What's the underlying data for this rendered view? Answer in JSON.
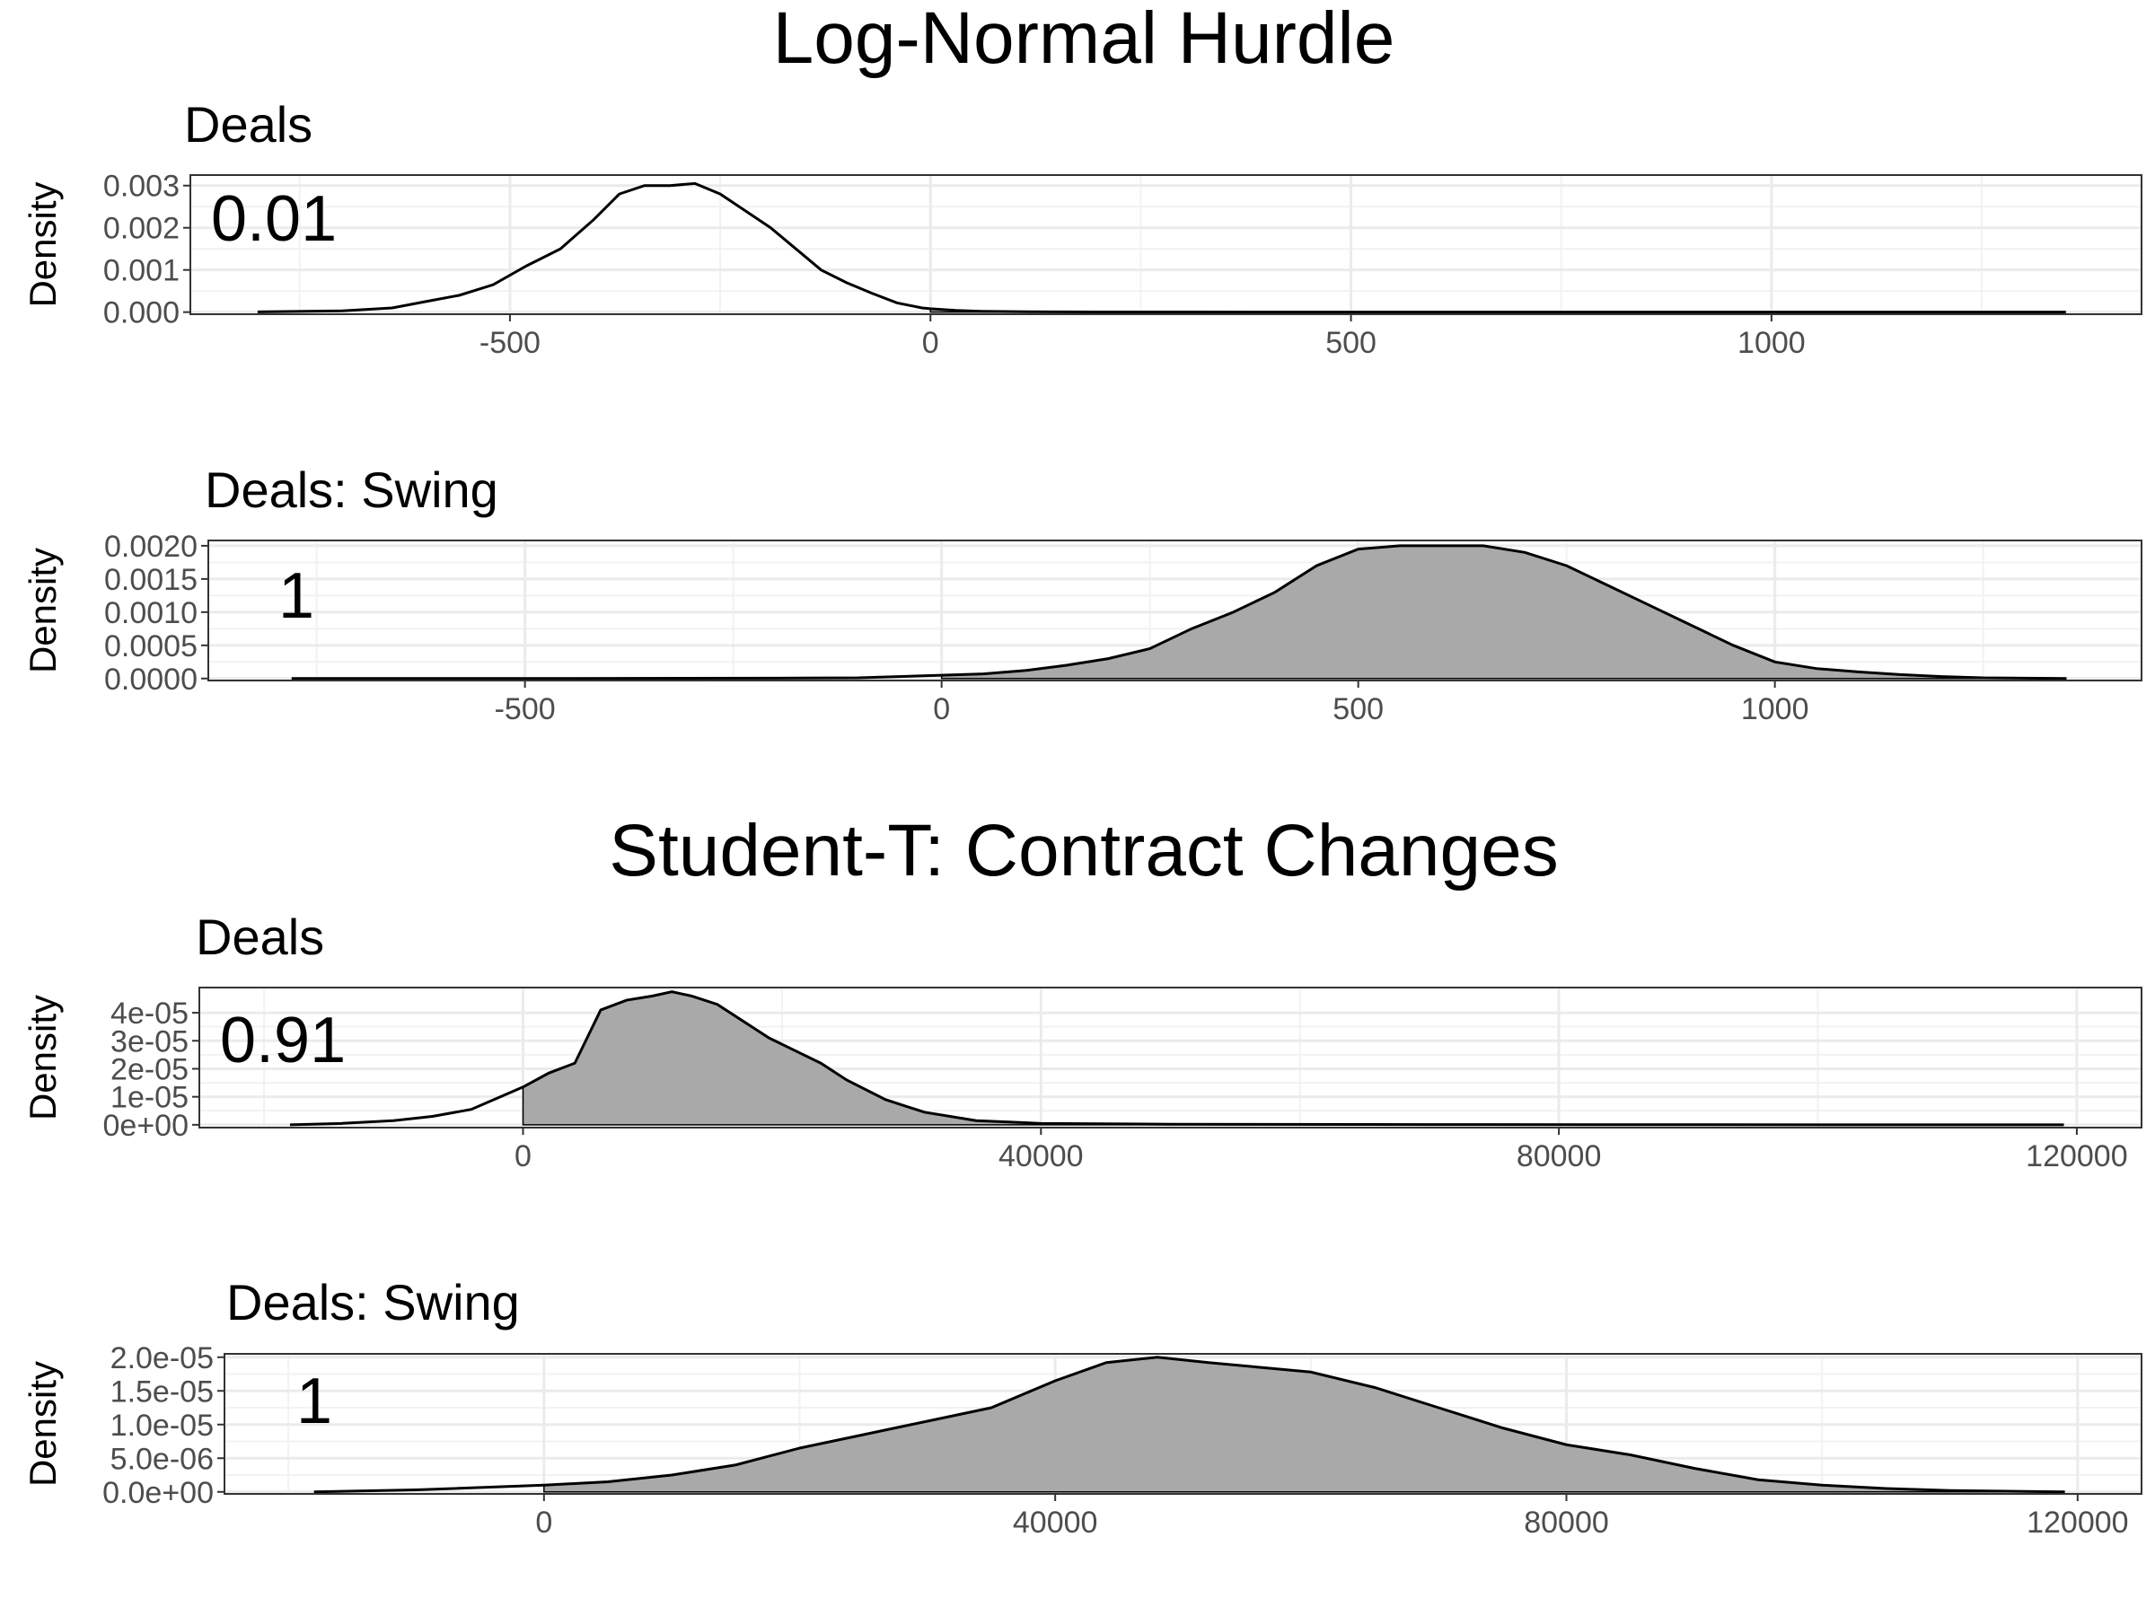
{
  "sections": [
    {
      "title": "Log-Normal Hurdle"
    },
    {
      "title": "Student-T: Contract Changes"
    }
  ],
  "chart_data": [
    {
      "type": "area",
      "section": "Log-Normal Hurdle",
      "title": "Deals",
      "ylabel": "Density",
      "xlabel": "",
      "annotation": "0.01",
      "xlim": [
        -880,
        1440
      ],
      "ylim": [
        -5e-05,
        0.00325
      ],
      "xticks": [
        -500,
        0,
        500,
        1000
      ],
      "xtick_labels": [
        "-500",
        "0",
        "500",
        "1000"
      ],
      "yticks": [
        0,
        0.001,
        0.002,
        0.003
      ],
      "ytick_labels": [
        "0.000",
        "0.001",
        "0.002",
        "0.003"
      ],
      "shade_from": 0,
      "fill_color": "#a9a9a9",
      "line_color": "#000000",
      "density": {
        "x": [
          -800,
          -700,
          -640,
          -600,
          -560,
          -520,
          -480,
          -440,
          -400,
          -370,
          -340,
          -310,
          -280,
          -250,
          -220,
          -190,
          -160,
          -130,
          -100,
          -70,
          -40,
          -10,
          0,
          30,
          60,
          100,
          150,
          200,
          300,
          500,
          800,
          1100,
          1350
        ],
        "y": [
          5e-06,
          3e-05,
          0.0001,
          0.00025,
          0.0004,
          0.00065,
          0.0011,
          0.0015,
          0.0022,
          0.0028,
          0.003,
          0.003,
          0.00305,
          0.0028,
          0.0024,
          0.002,
          0.0015,
          0.001,
          0.0007,
          0.00045,
          0.00022,
          0.0001,
          8e-05,
          4e-05,
          2e-05,
          1e-05,
          5e-06,
          3e-06,
          2e-06,
          1e-06,
          0,
          0,
          0
        ]
      }
    },
    {
      "type": "area",
      "section": "Log-Normal Hurdle",
      "title": "Deals: Swing",
      "ylabel": "Density",
      "xlabel": "",
      "annotation": "1",
      "xlim": [
        -880,
        1440
      ],
      "ylim": [
        -3e-05,
        0.00208
      ],
      "xticks": [
        -500,
        0,
        500,
        1000
      ],
      "xtick_labels": [
        "-500",
        "0",
        "500",
        "1000"
      ],
      "yticks": [
        0,
        0.0005,
        0.001,
        0.0015,
        0.002
      ],
      "ytick_labels": [
        "0.0000",
        "0.0005",
        "0.0010",
        "0.0015",
        "0.0020"
      ],
      "shade_from": 0,
      "fill_color": "#a9a9a9",
      "line_color": "#000000",
      "density": {
        "x": [
          -780,
          -500,
          -200,
          -100,
          0,
          50,
          100,
          150,
          200,
          250,
          300,
          350,
          400,
          450,
          500,
          550,
          600,
          650,
          700,
          750,
          800,
          850,
          900,
          950,
          1000,
          1050,
          1100,
          1150,
          1200,
          1250,
          1300,
          1350
        ],
        "y": [
          0,
          0,
          5e-06,
          1e-05,
          5e-05,
          7e-05,
          0.00012,
          0.0002,
          0.0003,
          0.00045,
          0.00075,
          0.001,
          0.0013,
          0.0017,
          0.00195,
          0.002,
          0.002,
          0.002,
          0.0019,
          0.0017,
          0.0014,
          0.0011,
          0.0008,
          0.0005,
          0.00025,
          0.00015,
          0.0001,
          6e-05,
          3e-05,
          1e-05,
          5e-06,
          0
        ]
      }
    },
    {
      "type": "area",
      "section": "Student-T: Contract Changes",
      "title": "Deals",
      "ylabel": "Density",
      "xlabel": "",
      "annotation": "0.91",
      "xlim": [
        -25000,
        125000
      ],
      "ylim": [
        -1e-06,
        4.9e-05
      ],
      "xticks": [
        0,
        40000,
        80000,
        120000
      ],
      "xtick_labels": [
        "0",
        "40000",
        "80000",
        "120000"
      ],
      "yticks": [
        0,
        1e-05,
        2e-05,
        3e-05,
        4e-05
      ],
      "ytick_labels": [
        "0e+00",
        "1e-05",
        "2e-05",
        "3e-05",
        "4e-05"
      ],
      "shade_from": 0,
      "fill_color": "#a9a9a9",
      "line_color": "#000000",
      "density": {
        "x": [
          -18000,
          -14000,
          -10000,
          -7000,
          -4000,
          -2000,
          0,
          2000,
          4000,
          6000,
          8000,
          10000,
          11500,
          13000,
          15000,
          17000,
          19000,
          21000,
          23000,
          25000,
          28000,
          31000,
          35000,
          40000,
          50000,
          70000,
          100000,
          119000
        ],
        "y": [
          0,
          5e-07,
          1.5e-06,
          3e-06,
          5.5e-06,
          9.5e-06,
          1.35e-05,
          1.85e-05,
          2.2e-05,
          4.1e-05,
          4.45e-05,
          4.6e-05,
          4.75e-05,
          4.6e-05,
          4.3e-05,
          3.7e-05,
          3.1e-05,
          2.65e-05,
          2.2e-05,
          1.6e-05,
          9e-06,
          4.5e-06,
          1.5e-06,
          5e-07,
          2e-07,
          1e-07,
          0,
          0
        ]
      }
    },
    {
      "type": "area",
      "section": "Student-T: Contract Changes",
      "title": "Deals: Swing",
      "ylabel": "Density",
      "xlabel": "",
      "annotation": "1",
      "xlim": [
        -25000,
        125000
      ],
      "ylim": [
        -3e-07,
        2.05e-05
      ],
      "xticks": [
        0,
        40000,
        80000,
        120000
      ],
      "xtick_labels": [
        "0",
        "40000",
        "80000",
        "120000"
      ],
      "yticks": [
        0,
        5e-06,
        1e-05,
        1.5e-05,
        2e-05
      ],
      "ytick_labels": [
        "0.0e+00",
        "5.0e-06",
        "1.0e-05",
        "1.5e-05",
        "2.0e-05"
      ],
      "shade_from": 0,
      "fill_color": "#a9a9a9",
      "line_color": "#000000",
      "density": {
        "x": [
          -18000,
          -10000,
          0,
          5000,
          10000,
          15000,
          20000,
          25000,
          30000,
          35000,
          40000,
          44000,
          48000,
          52000,
          56000,
          60000,
          65000,
          70000,
          75000,
          80000,
          85000,
          90000,
          95000,
          100000,
          105000,
          110000,
          119000
        ],
        "y": [
          0,
          3e-07,
          1e-06,
          1.5e-06,
          2.5e-06,
          4e-06,
          6.5e-06,
          8.5e-06,
          1.05e-05,
          1.25e-05,
          1.65e-05,
          1.92e-05,
          2e-05,
          1.92e-05,
          1.85e-05,
          1.78e-05,
          1.55e-05,
          1.25e-05,
          9.5e-06,
          7e-06,
          5.5e-06,
          3.5e-06,
          1.8e-06,
          1e-06,
          5e-07,
          2e-07,
          0
        ]
      }
    }
  ]
}
